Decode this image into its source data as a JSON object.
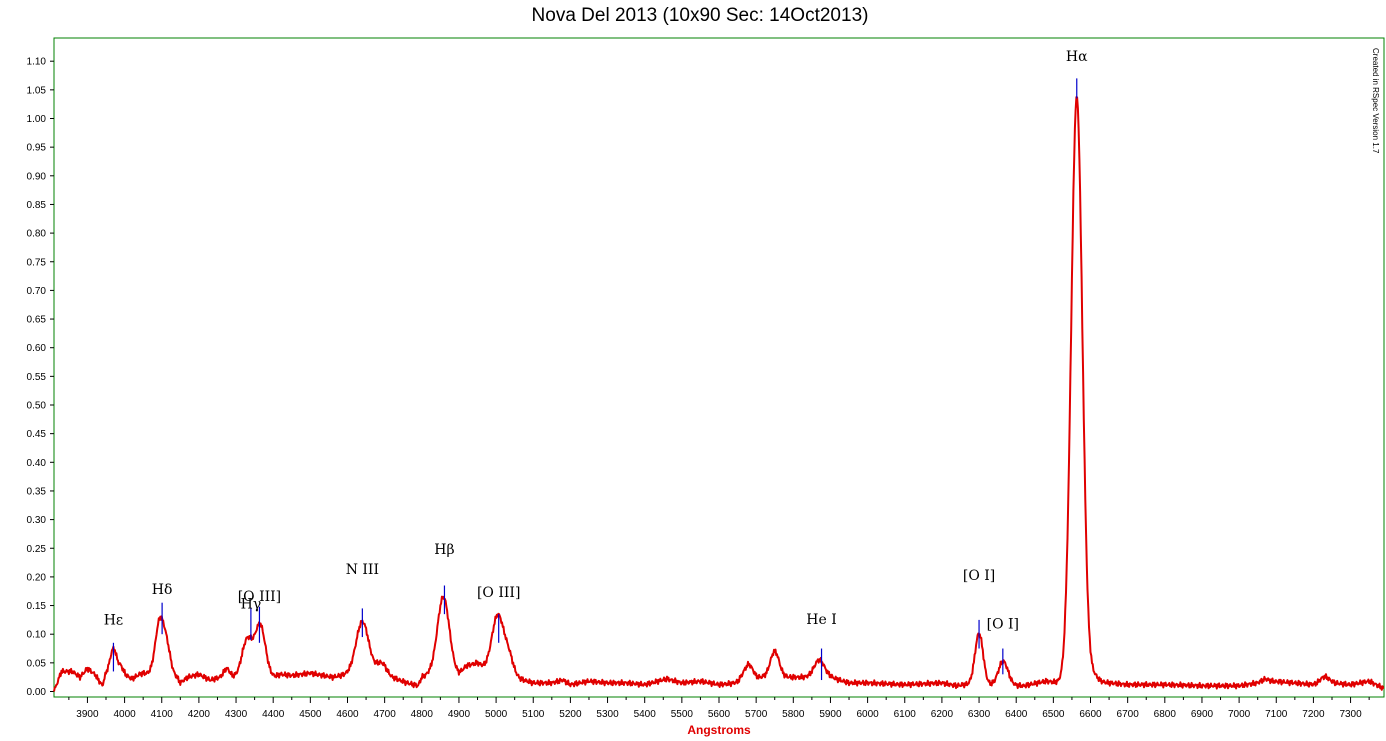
{
  "chart_data": {
    "type": "line",
    "title": "Nova Del 2013 (10x90 Sec: 14Oct2013)",
    "xlabel": "Angstroms",
    "ylabel": "",
    "xlim": [
      3810,
      7390
    ],
    "ylim": [
      0,
      1.15
    ],
    "x_ticks": [
      3900,
      4000,
      4100,
      4200,
      4300,
      4400,
      4500,
      4600,
      4700,
      4800,
      4900,
      5000,
      5100,
      5200,
      5300,
      5400,
      5500,
      5600,
      5700,
      5800,
      5900,
      6000,
      6100,
      6200,
      6300,
      6400,
      6500,
      6600,
      6700,
      6800,
      6900,
      7000,
      7100,
      7200,
      7300
    ],
    "y_ticks": [
      "0.00",
      "0.05",
      "0.10",
      "0.15",
      "0.20",
      "0.25",
      "0.30",
      "0.35",
      "0.40",
      "0.45",
      "0.50",
      "0.55",
      "0.60",
      "0.65",
      "0.70",
      "0.75",
      "0.80",
      "0.85",
      "0.90",
      "0.95",
      "1.00",
      "1.05",
      "1.10"
    ],
    "grid": false,
    "watermark": "Created in RSpec Version 1.7",
    "colors": {
      "series": "#e00000",
      "markers": "#0000cc",
      "frame": "#008000",
      "xlabel": "#e00000"
    },
    "baseline": [
      [
        3810,
        0.0
      ],
      [
        3830,
        0.035
      ],
      [
        3860,
        0.035
      ],
      [
        3880,
        0.025
      ],
      [
        3900,
        0.04
      ],
      [
        3920,
        0.03
      ],
      [
        3940,
        0.01
      ],
      [
        3950,
        0.03
      ],
      [
        4000,
        0.03
      ],
      [
        4020,
        0.022
      ],
      [
        4040,
        0.03
      ],
      [
        4050,
        0.032
      ],
      [
        4070,
        0.03
      ],
      [
        4140,
        0.025
      ],
      [
        4150,
        0.015
      ],
      [
        4170,
        0.025
      ],
      [
        4200,
        0.03
      ],
      [
        4230,
        0.02
      ],
      [
        4260,
        0.025
      ],
      [
        4400,
        0.025
      ],
      [
        4420,
        0.03
      ],
      [
        4450,
        0.028
      ],
      [
        4500,
        0.032
      ],
      [
        4560,
        0.025
      ],
      [
        4600,
        0.03
      ],
      [
        4700,
        0.035
      ],
      [
        4720,
        0.025
      ],
      [
        4740,
        0.02
      ],
      [
        4760,
        0.015
      ],
      [
        4790,
        0.01
      ],
      [
        4800,
        0.025
      ],
      [
        4820,
        0.03
      ],
      [
        4900,
        0.03
      ],
      [
        4920,
        0.045
      ],
      [
        4950,
        0.05
      ],
      [
        4970,
        0.04
      ],
      [
        5100,
        0.015
      ],
      [
        5150,
        0.015
      ],
      [
        5180,
        0.02
      ],
      [
        5200,
        0.012
      ],
      [
        5250,
        0.018
      ],
      [
        5300,
        0.015
      ],
      [
        5350,
        0.015
      ],
      [
        5400,
        0.012
      ],
      [
        5460,
        0.022
      ],
      [
        5500,
        0.015
      ],
      [
        5550,
        0.018
      ],
      [
        5600,
        0.012
      ],
      [
        5650,
        0.015
      ],
      [
        5680,
        0.03
      ],
      [
        5700,
        0.02
      ],
      [
        5720,
        0.025
      ],
      [
        5800,
        0.025
      ],
      [
        5900,
        0.025
      ],
      [
        5950,
        0.015
      ],
      [
        6000,
        0.015
      ],
      [
        6100,
        0.012
      ],
      [
        6200,
        0.015
      ],
      [
        6240,
        0.01
      ],
      [
        6260,
        0.012
      ],
      [
        6420,
        0.01
      ],
      [
        6480,
        0.018
      ],
      [
        6520,
        0.015
      ],
      [
        6600,
        0.02
      ],
      [
        6650,
        0.015
      ],
      [
        6700,
        0.012
      ],
      [
        6800,
        0.012
      ],
      [
        6900,
        0.01
      ],
      [
        7000,
        0.01
      ],
      [
        7050,
        0.015
      ],
      [
        7070,
        0.022
      ],
      [
        7090,
        0.018
      ],
      [
        7150,
        0.015
      ],
      [
        7200,
        0.012
      ],
      [
        7250,
        0.015
      ],
      [
        7300,
        0.012
      ],
      [
        7350,
        0.018
      ],
      [
        7390,
        0.005
      ]
    ],
    "peaks": [
      {
        "center": 3970,
        "height": 0.045,
        "width": 9
      },
      {
        "center": 3990,
        "height": 0.012,
        "width": 6
      },
      {
        "center": 4095,
        "height": 0.095,
        "width": 12
      },
      {
        "center": 4115,
        "height": 0.04,
        "width": 10
      },
      {
        "center": 4275,
        "height": 0.015,
        "width": 8
      },
      {
        "center": 4330,
        "height": 0.065,
        "width": 14
      },
      {
        "center": 4365,
        "height": 0.09,
        "width": 14
      },
      {
        "center": 4640,
        "height": 0.09,
        "width": 17
      },
      {
        "center": 4690,
        "height": 0.015,
        "width": 12
      },
      {
        "center": 4858,
        "height": 0.135,
        "width": 16
      },
      {
        "center": 5005,
        "height": 0.1,
        "width": 16
      },
      {
        "center": 5035,
        "height": 0.03,
        "width": 12
      },
      {
        "center": 5680,
        "height": 0.018,
        "width": 15
      },
      {
        "center": 5750,
        "height": 0.045,
        "width": 12
      },
      {
        "center": 5870,
        "height": 0.03,
        "width": 14
      },
      {
        "center": 6300,
        "height": 0.09,
        "width": 11
      },
      {
        "center": 6365,
        "height": 0.042,
        "width": 13
      },
      {
        "center": 6563,
        "height": 1.02,
        "width": 15
      },
      {
        "center": 6610,
        "height": 0.008,
        "width": 10
      },
      {
        "center": 7230,
        "height": 0.012,
        "width": 12
      }
    ],
    "lines": [
      {
        "label": "Hε",
        "wavelength": 3970,
        "marker_top": 0.085,
        "marker_bottom": 0.035,
        "label_at": [
          3970,
          0.117
        ]
      },
      {
        "label": "Hδ",
        "wavelength": 4101,
        "marker_top": 0.155,
        "marker_bottom": 0.1,
        "label_at": [
          4101,
          0.17
        ]
      },
      {
        "label": "Hγ",
        "wavelength": 4340,
        "marker_top": 0.145,
        "marker_bottom": 0.09,
        "label_at": [
          4340,
          0.145
        ]
      },
      {
        "label": "[O III]",
        "wavelength": 4363,
        "marker_top": 0.148,
        "marker_bottom": 0.085,
        "label_at": [
          4363,
          0.158
        ]
      },
      {
        "label": "N III",
        "wavelength": 4640,
        "marker_top": 0.145,
        "marker_bottom": 0.095,
        "label_at": [
          4640,
          0.205
        ]
      },
      {
        "label": "Hβ",
        "wavelength": 4861,
        "marker_top": 0.185,
        "marker_bottom": 0.135,
        "label_at": [
          4861,
          0.24
        ]
      },
      {
        "label": "[O III]",
        "wavelength": 5007,
        "marker_top": 0.135,
        "marker_bottom": 0.085,
        "label_at": [
          5007,
          0.165
        ]
      },
      {
        "label": "He I",
        "wavelength": 5876,
        "marker_top": 0.075,
        "marker_bottom": 0.02,
        "label_at": [
          5876,
          0.118
        ]
      },
      {
        "label": "[O I]",
        "wavelength": 6300,
        "marker_top": 0.125,
        "marker_bottom": 0.075,
        "label_at": [
          6300,
          0.195
        ]
      },
      {
        "label": "[O I]",
        "wavelength": 6364,
        "marker_top": 0.075,
        "marker_bottom": 0.03,
        "label_at": [
          6364,
          0.11
        ]
      },
      {
        "label": "Hα",
        "wavelength": 6563,
        "marker_top": 1.07,
        "marker_bottom": 1.035,
        "label_at": [
          6563,
          1.1
        ]
      }
    ]
  }
}
